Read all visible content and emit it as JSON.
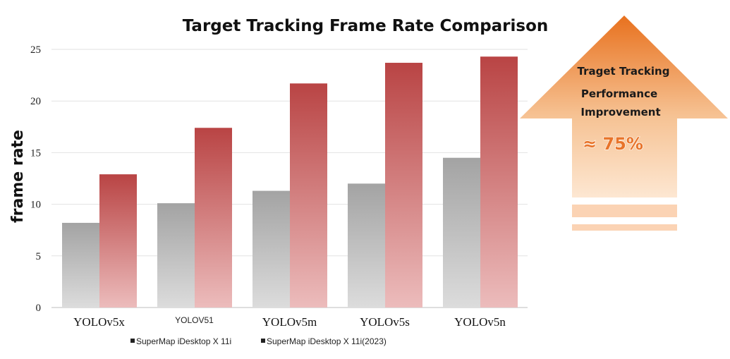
{
  "chart_data": {
    "type": "bar",
    "title": "Target Tracking Frame Rate Comparison",
    "ylabel": "frame rate",
    "xlabel": "",
    "ylim": [
      0,
      25
    ],
    "yticks": [
      0,
      5,
      10,
      15,
      20,
      25
    ],
    "grid": true,
    "legend_position": "bottom",
    "categories": [
      "YOLOv5x",
      "YOLOV51",
      "YOLOv5m",
      "YOLOv5s",
      "YOLOv5n"
    ],
    "series": [
      {
        "name": "SuperMap iDesktop X 11i",
        "values": [
          8.2,
          10.1,
          11.3,
          12.0,
          14.5
        ],
        "color": "#a6a6a6"
      },
      {
        "name": "SuperMap iDesktop X 11i(2023)",
        "values": [
          12.9,
          17.4,
          21.7,
          23.7,
          24.3
        ],
        "color": "#b94a4a"
      }
    ]
  },
  "annotation": {
    "line1": "Traget Tracking",
    "line2": "Performance",
    "line3": "Improvement",
    "percent": "≈ 75%",
    "color": "#e8742a"
  }
}
